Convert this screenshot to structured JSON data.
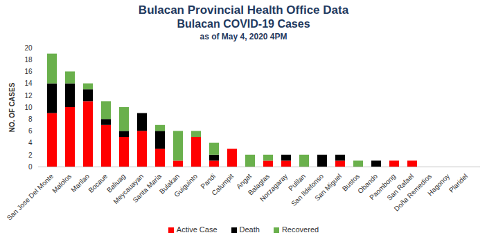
{
  "chart_data": {
    "type": "bar",
    "title": "Bulacan Provincial Health Office Data",
    "subtitle": [
      "Bulacan COVID-19 Cases",
      "as of May 4, 2020 4PM"
    ],
    "y_label": "NO. OF CASES",
    "categories": [
      "San Jose Del Monte",
      "Malolos",
      "Marilao",
      "Bocaue",
      "Baliuag",
      "Meycauayan",
      "Santa Maria",
      "Bulakan",
      "Guiguinto",
      "Pandi",
      "Calumpit",
      "Angat",
      "Balagtas",
      "Norzagaray",
      "Pulilan",
      "San Ildefonso",
      "San Miguel",
      "Bustos",
      "Obando",
      "Paombong",
      "San Rafael",
      "Doña Remedios",
      "Hagonoy",
      "Plaridel"
    ],
    "series": [
      {
        "name": "Active Case",
        "color": "#ff0000",
        "values": [
          9,
          10,
          11,
          7,
          5,
          6,
          3,
          1,
          5,
          1,
          3,
          0,
          1,
          1,
          0,
          0,
          1,
          0,
          0,
          1,
          1,
          0,
          0,
          0
        ]
      },
      {
        "name": "Death",
        "color": "#000000",
        "values": [
          5,
          4,
          2,
          1,
          1,
          3,
          3,
          0,
          0,
          1,
          0,
          0,
          0,
          1,
          0,
          2,
          1,
          0,
          1,
          0,
          0,
          0,
          0,
          0
        ]
      },
      {
        "name": "Recovered",
        "color": "#6ab04c",
        "values": [
          5,
          2,
          1,
          3,
          4,
          0,
          1,
          5,
          1,
          2,
          0,
          2,
          1,
          0,
          2,
          0,
          0,
          1,
          0,
          0,
          0,
          0,
          0,
          0
        ]
      }
    ],
    "ylim": [
      0,
      20
    ],
    "yticks": [
      0,
      2,
      4,
      6,
      8,
      10,
      12,
      14,
      16,
      18,
      20
    ],
    "stacked": true,
    "grid": false,
    "legend": "bottom"
  }
}
